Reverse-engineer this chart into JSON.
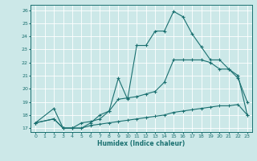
{
  "xlabel": "Humidex (Indice chaleur)",
  "bg_color": "#cce8e8",
  "line_color": "#1a7070",
  "xlim": [
    -0.5,
    23.5
  ],
  "ylim": [
    16.7,
    26.4
  ],
  "xticks": [
    0,
    1,
    2,
    3,
    4,
    5,
    6,
    7,
    8,
    9,
    10,
    11,
    12,
    13,
    14,
    15,
    16,
    17,
    18,
    19,
    20,
    21,
    22,
    23
  ],
  "yticks": [
    17,
    18,
    19,
    20,
    21,
    22,
    23,
    24,
    25,
    26
  ],
  "line1_x": [
    0,
    2,
    3,
    4,
    5,
    6,
    7,
    8,
    9,
    10,
    11,
    12,
    13,
    14,
    15,
    16,
    17,
    18,
    19,
    20,
    21,
    22,
    23
  ],
  "line1_y": [
    17.4,
    18.5,
    17.0,
    17.0,
    17.0,
    17.4,
    18.0,
    18.3,
    20.8,
    19.2,
    23.3,
    23.3,
    24.4,
    24.4,
    25.9,
    25.5,
    24.2,
    23.2,
    22.2,
    22.2,
    21.5,
    20.8,
    19.0
  ],
  "line2_x": [
    0,
    2,
    3,
    4,
    5,
    6,
    7,
    8,
    9,
    10,
    11,
    12,
    13,
    14,
    15,
    16,
    17,
    18,
    19,
    20,
    21,
    22,
    23
  ],
  "line2_y": [
    17.4,
    17.7,
    17.0,
    17.0,
    17.4,
    17.5,
    17.7,
    18.3,
    19.2,
    19.3,
    19.4,
    19.6,
    19.8,
    20.5,
    22.2,
    22.2,
    22.2,
    22.2,
    22.0,
    21.5,
    21.5,
    21.0,
    18.0
  ],
  "line3_x": [
    0,
    2,
    3,
    4,
    5,
    6,
    7,
    8,
    9,
    10,
    11,
    12,
    13,
    14,
    15,
    16,
    17,
    18,
    19,
    20,
    21,
    22,
    23
  ],
  "line3_y": [
    17.4,
    17.7,
    17.0,
    17.0,
    17.0,
    17.2,
    17.3,
    17.4,
    17.5,
    17.6,
    17.7,
    17.8,
    17.9,
    18.0,
    18.2,
    18.3,
    18.4,
    18.5,
    18.6,
    18.7,
    18.7,
    18.8,
    18.0
  ]
}
